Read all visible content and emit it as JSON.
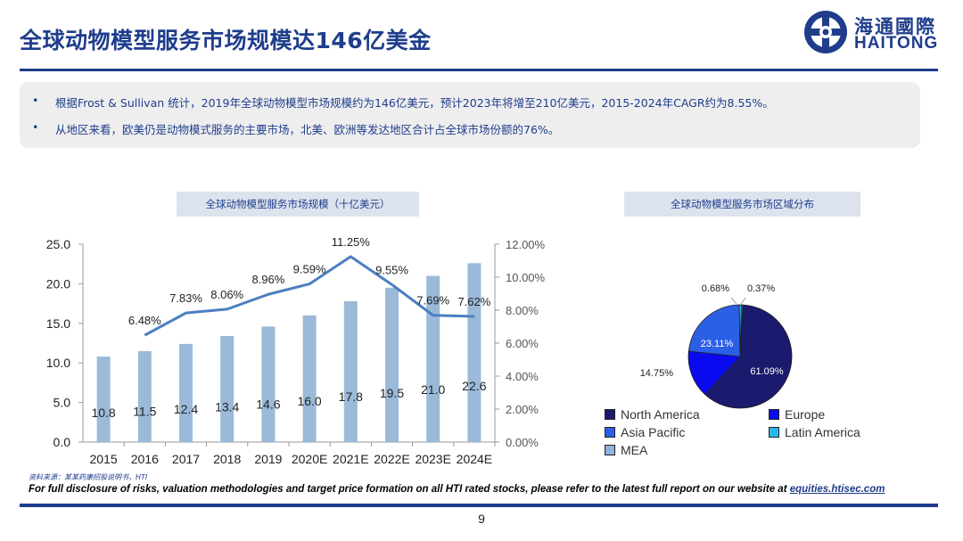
{
  "header": {
    "title": "全球动物模型服务市场规模达146亿美金",
    "logo_cn": "海通國際",
    "logo_en": "HAITONG"
  },
  "summary": {
    "bullets": [
      "根据Frost & Sullivan 统计，2019年全球动物模型市场规模约为146亿美元，预计2023年将增至210亿美元，2015-2024年CAGR约为8.55%。",
      "从地区来看，欧美仍是动物模式服务的主要市场，北美、欧洲等发达地区合计占全球市场份额的76%。"
    ],
    "bullet_symbol": "•"
  },
  "colors": {
    "brand": "#1f3d8c",
    "bar": "#9bbad9",
    "line": "#4b7fc1",
    "pie": [
      "#1a1a6e",
      "#0a0af0",
      "#2b5fe6",
      "#27b8ea",
      "#8fb4dd"
    ]
  },
  "chart_data": [
    {
      "type": "bar",
      "title": "全球动物模型服务市场规模（十亿美元）",
      "categories": [
        "2015",
        "2016",
        "2017",
        "2018",
        "2019",
        "2020E",
        "2021E",
        "2022E",
        "2023E",
        "2024E"
      ],
      "series": [
        {
          "values": [
            10.8,
            11.5,
            12.4,
            13.4,
            14.6,
            16.0,
            17.8,
            19.5,
            21.0,
            22.6
          ],
          "labels": [
            "10.8",
            "11.5",
            "12.4",
            "13.4",
            "14.6",
            "16.0",
            "17.8",
            "19.5",
            "21.0",
            "22.6"
          ]
        },
        {
          "type": "line",
          "axis": "right",
          "values": [
            null,
            6.48,
            7.83,
            8.06,
            8.96,
            9.59,
            11.25,
            9.55,
            7.69,
            7.62
          ],
          "labels": [
            null,
            "6.48%",
            "7.83%",
            "8.06%",
            "8.96%",
            "9.59%",
            "11.25%",
            "9.55%",
            "7.69%",
            "7.62%"
          ]
        }
      ],
      "ylim": [
        0,
        25
      ],
      "yticks": [
        "0.0",
        "5.0",
        "10.0",
        "15.0",
        "20.0",
        "25.0"
      ],
      "y2lim": [
        0,
        12
      ],
      "y2ticks": [
        "0.00%",
        "2.00%",
        "4.00%",
        "6.00%",
        "8.00%",
        "10.00%",
        "12.00%"
      ],
      "grid": false
    },
    {
      "type": "pie",
      "title": "全球动物模型服务市场区域分布",
      "labels": [
        "North America",
        "Europe",
        "Asia Pacific",
        "Latin America",
        "MEA"
      ],
      "values": [
        61.09,
        14.75,
        23.11,
        0.68,
        0.37
      ],
      "value_labels": [
        "61.09%",
        "14.75%",
        "23.11%",
        "0.68%",
        "0.37%"
      ],
      "legend": "bottom"
    }
  ],
  "footer": {
    "source": "资料来源：某某药康招股说明书，HTI",
    "disclosure": "For full disclosure of risks, valuation methodologies and target price formation on all HTI rated stocks, please refer to the latest full report on our website at ",
    "link": "equities.htisec.com",
    "page": "9"
  }
}
